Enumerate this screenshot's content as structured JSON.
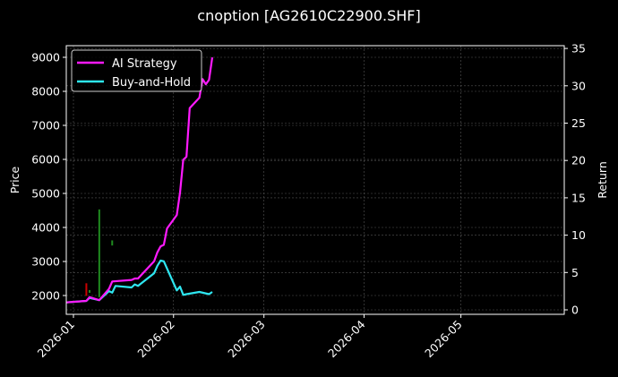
{
  "title": "cnoption [AG2610C22900.SHF]",
  "colors": {
    "background": "#000000",
    "ai_strategy": "#ff1aff",
    "buy_and_hold": "#2ee6f0",
    "grid": "#555555",
    "axes": "#ffffff",
    "buy_marker": "#1f8a1f",
    "sell_marker": "#cc0000"
  },
  "chart_data": {
    "type": "line",
    "title": "cnoption [AG2610C22900.SHF]",
    "xlabel": "",
    "ylabel": "Price",
    "y2label": "Return",
    "x_ticks": [
      "2026-01",
      "2026-02",
      "2026-03",
      "2026-04",
      "2026-05"
    ],
    "y_ticks": [
      2000,
      3000,
      4000,
      5000,
      6000,
      7000,
      8000,
      9000
    ],
    "y2_ticks": [
      0,
      5,
      10,
      15,
      20,
      25,
      30,
      35
    ],
    "ylim": [
      1650,
      9350
    ],
    "y2lim": [
      -0.5,
      35.3
    ],
    "grid": true,
    "legend_position": "upper left",
    "legend": [
      "AI Strategy",
      "Buy-and-Hold"
    ],
    "series": [
      {
        "name": "AI Strategy",
        "axis": "right",
        "x": [
          "2025-12-29",
          "2026-01-05",
          "2026-01-06",
          "2026-01-09",
          "2026-01-12",
          "2026-01-13",
          "2026-01-19",
          "2026-01-20",
          "2026-01-21",
          "2026-01-26",
          "2026-01-27",
          "2026-01-28",
          "2026-01-29",
          "2026-01-30",
          "2026-02-02",
          "2026-02-03",
          "2026-02-04",
          "2026-02-05",
          "2026-02-06",
          "2026-02-09",
          "2026-02-10",
          "2026-02-11",
          "2026-02-12",
          "2026-02-13"
        ],
        "values": [
          1.0,
          1.2,
          1.7,
          1.3,
          2.8,
          3.8,
          4.0,
          4.2,
          4.2,
          6.5,
          7.7,
          8.5,
          8.7,
          10.9,
          12.7,
          15.7,
          20.1,
          20.5,
          27.0,
          28.4,
          30.9,
          30.2,
          30.8,
          33.8
        ]
      },
      {
        "name": "Buy-and-Hold",
        "axis": "right",
        "x": [
          "2025-12-29",
          "2026-01-05",
          "2026-01-06",
          "2026-01-09",
          "2026-01-12",
          "2026-01-13",
          "2026-01-14",
          "2026-01-19",
          "2026-01-20",
          "2026-01-21",
          "2026-01-26",
          "2026-01-27",
          "2026-01-28",
          "2026-01-29",
          "2026-02-02",
          "2026-02-03",
          "2026-02-04",
          "2026-02-05",
          "2026-02-09",
          "2026-02-12",
          "2026-02-13"
        ],
        "values": [
          1.0,
          1.2,
          1.6,
          1.3,
          2.5,
          2.3,
          3.2,
          3.0,
          3.4,
          3.2,
          4.9,
          5.9,
          6.6,
          6.5,
          2.6,
          3.1,
          2.0,
          2.1,
          2.4,
          2.1,
          2.4
        ]
      }
    ],
    "markers": {
      "buy_bars": [
        {
          "x": "2026-01-09",
          "low": 1950,
          "high": 4530
        },
        {
          "x": "2026-01-13",
          "low": 3470,
          "high": 3620
        },
        {
          "x": "2026-01-06",
          "low": 2080,
          "high": 2160
        }
      ],
      "sell_bars": [
        {
          "x": "2026-01-05",
          "low": 1990,
          "high": 2360
        }
      ]
    }
  },
  "axes": {
    "left_label": "Price",
    "right_label": "Return"
  }
}
